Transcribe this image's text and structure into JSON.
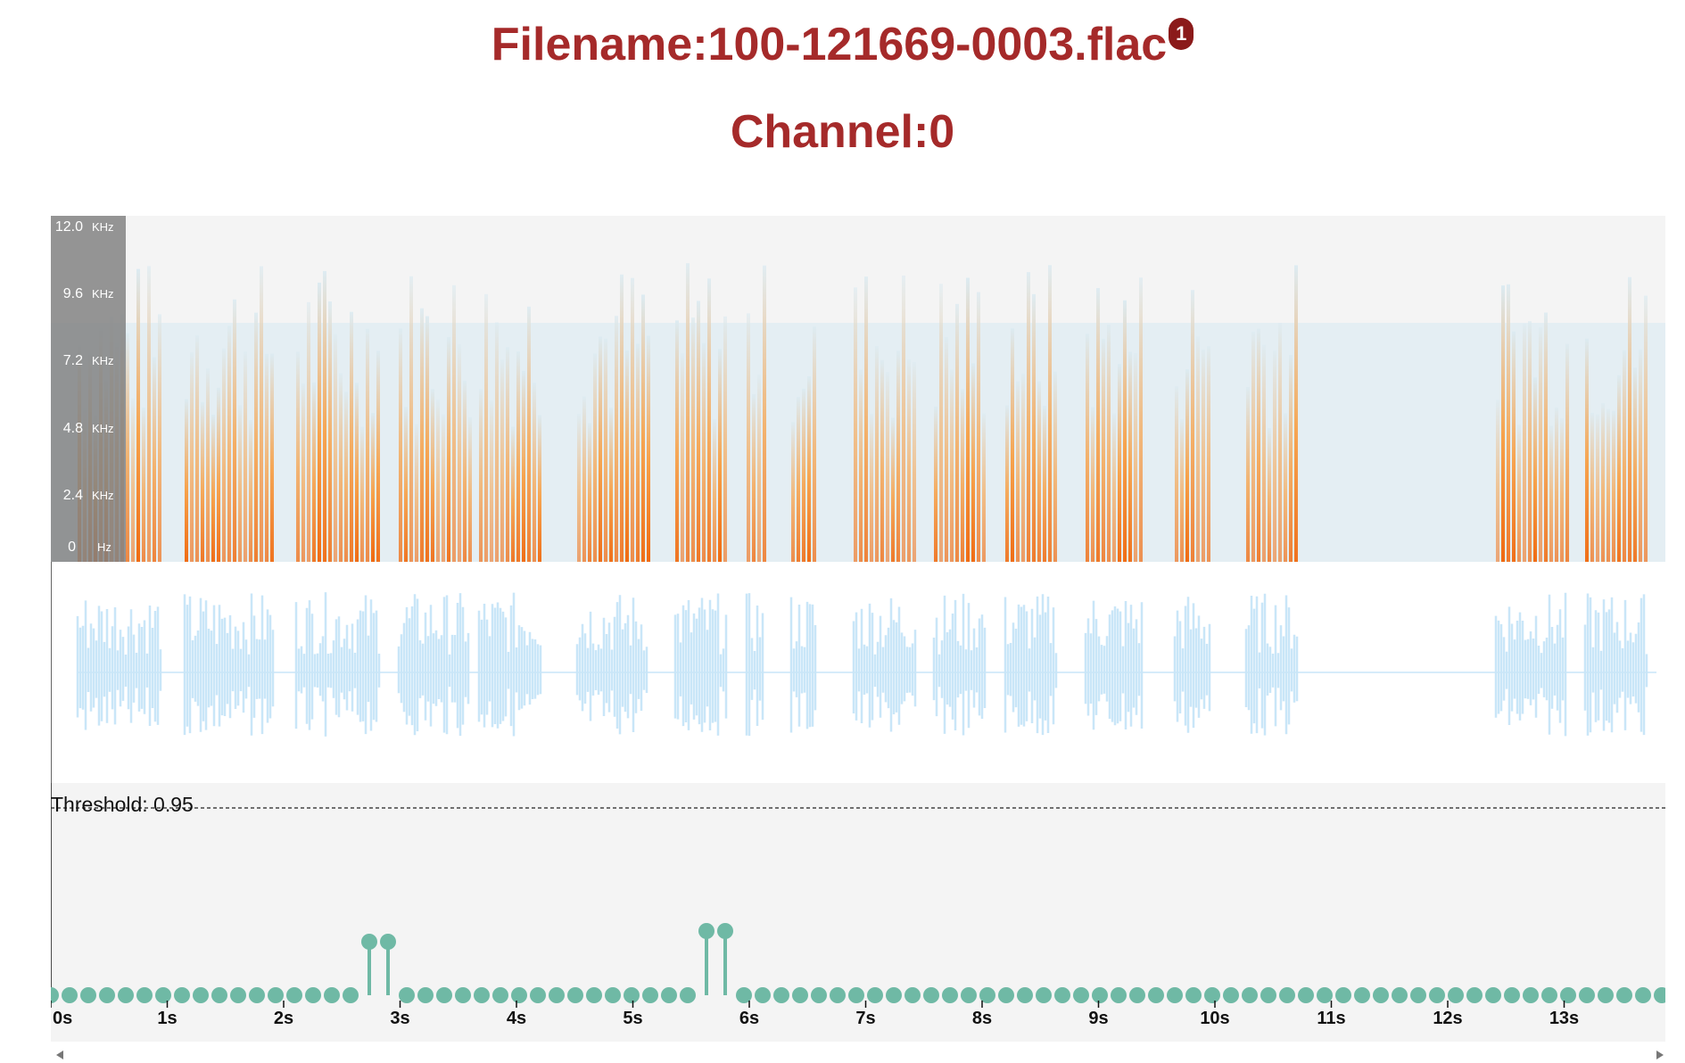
{
  "header": {
    "filename_label": "Filename:100-121669-0003.flac",
    "badge": "1",
    "channel_label": "Channel:0"
  },
  "spectrogram": {
    "freq_labels": [
      {
        "value": "12.0",
        "unit": "KHz"
      },
      {
        "value": "9.6",
        "unit": "KHz"
      },
      {
        "value": "7.2",
        "unit": "KHz"
      },
      {
        "value": "4.8",
        "unit": "KHz"
      },
      {
        "value": "2.4",
        "unit": "KHz"
      },
      {
        "value": "0",
        "unit": "Hz"
      }
    ]
  },
  "threshold": {
    "label": "Threshold: 0.95",
    "value": 0.95
  },
  "timeline": {
    "tick_labels": [
      "0s",
      "1s",
      "2s",
      "3s",
      "4s",
      "5s",
      "6s",
      "7s",
      "8s",
      "9s",
      "10s",
      "11s",
      "12s",
      "13s"
    ],
    "duration_s": 13.9
  },
  "colors": {
    "title": "#a52a2a",
    "marker": "#6fb9a5",
    "waveform": "#c9e6f8",
    "spectro_low": "#cfe3ee",
    "spectro_high": "#f47b20",
    "panel_bg": "#f4f4f4"
  },
  "icons": {
    "scroll_left": "arrow-left-icon",
    "scroll_right": "arrow-right-icon"
  }
}
